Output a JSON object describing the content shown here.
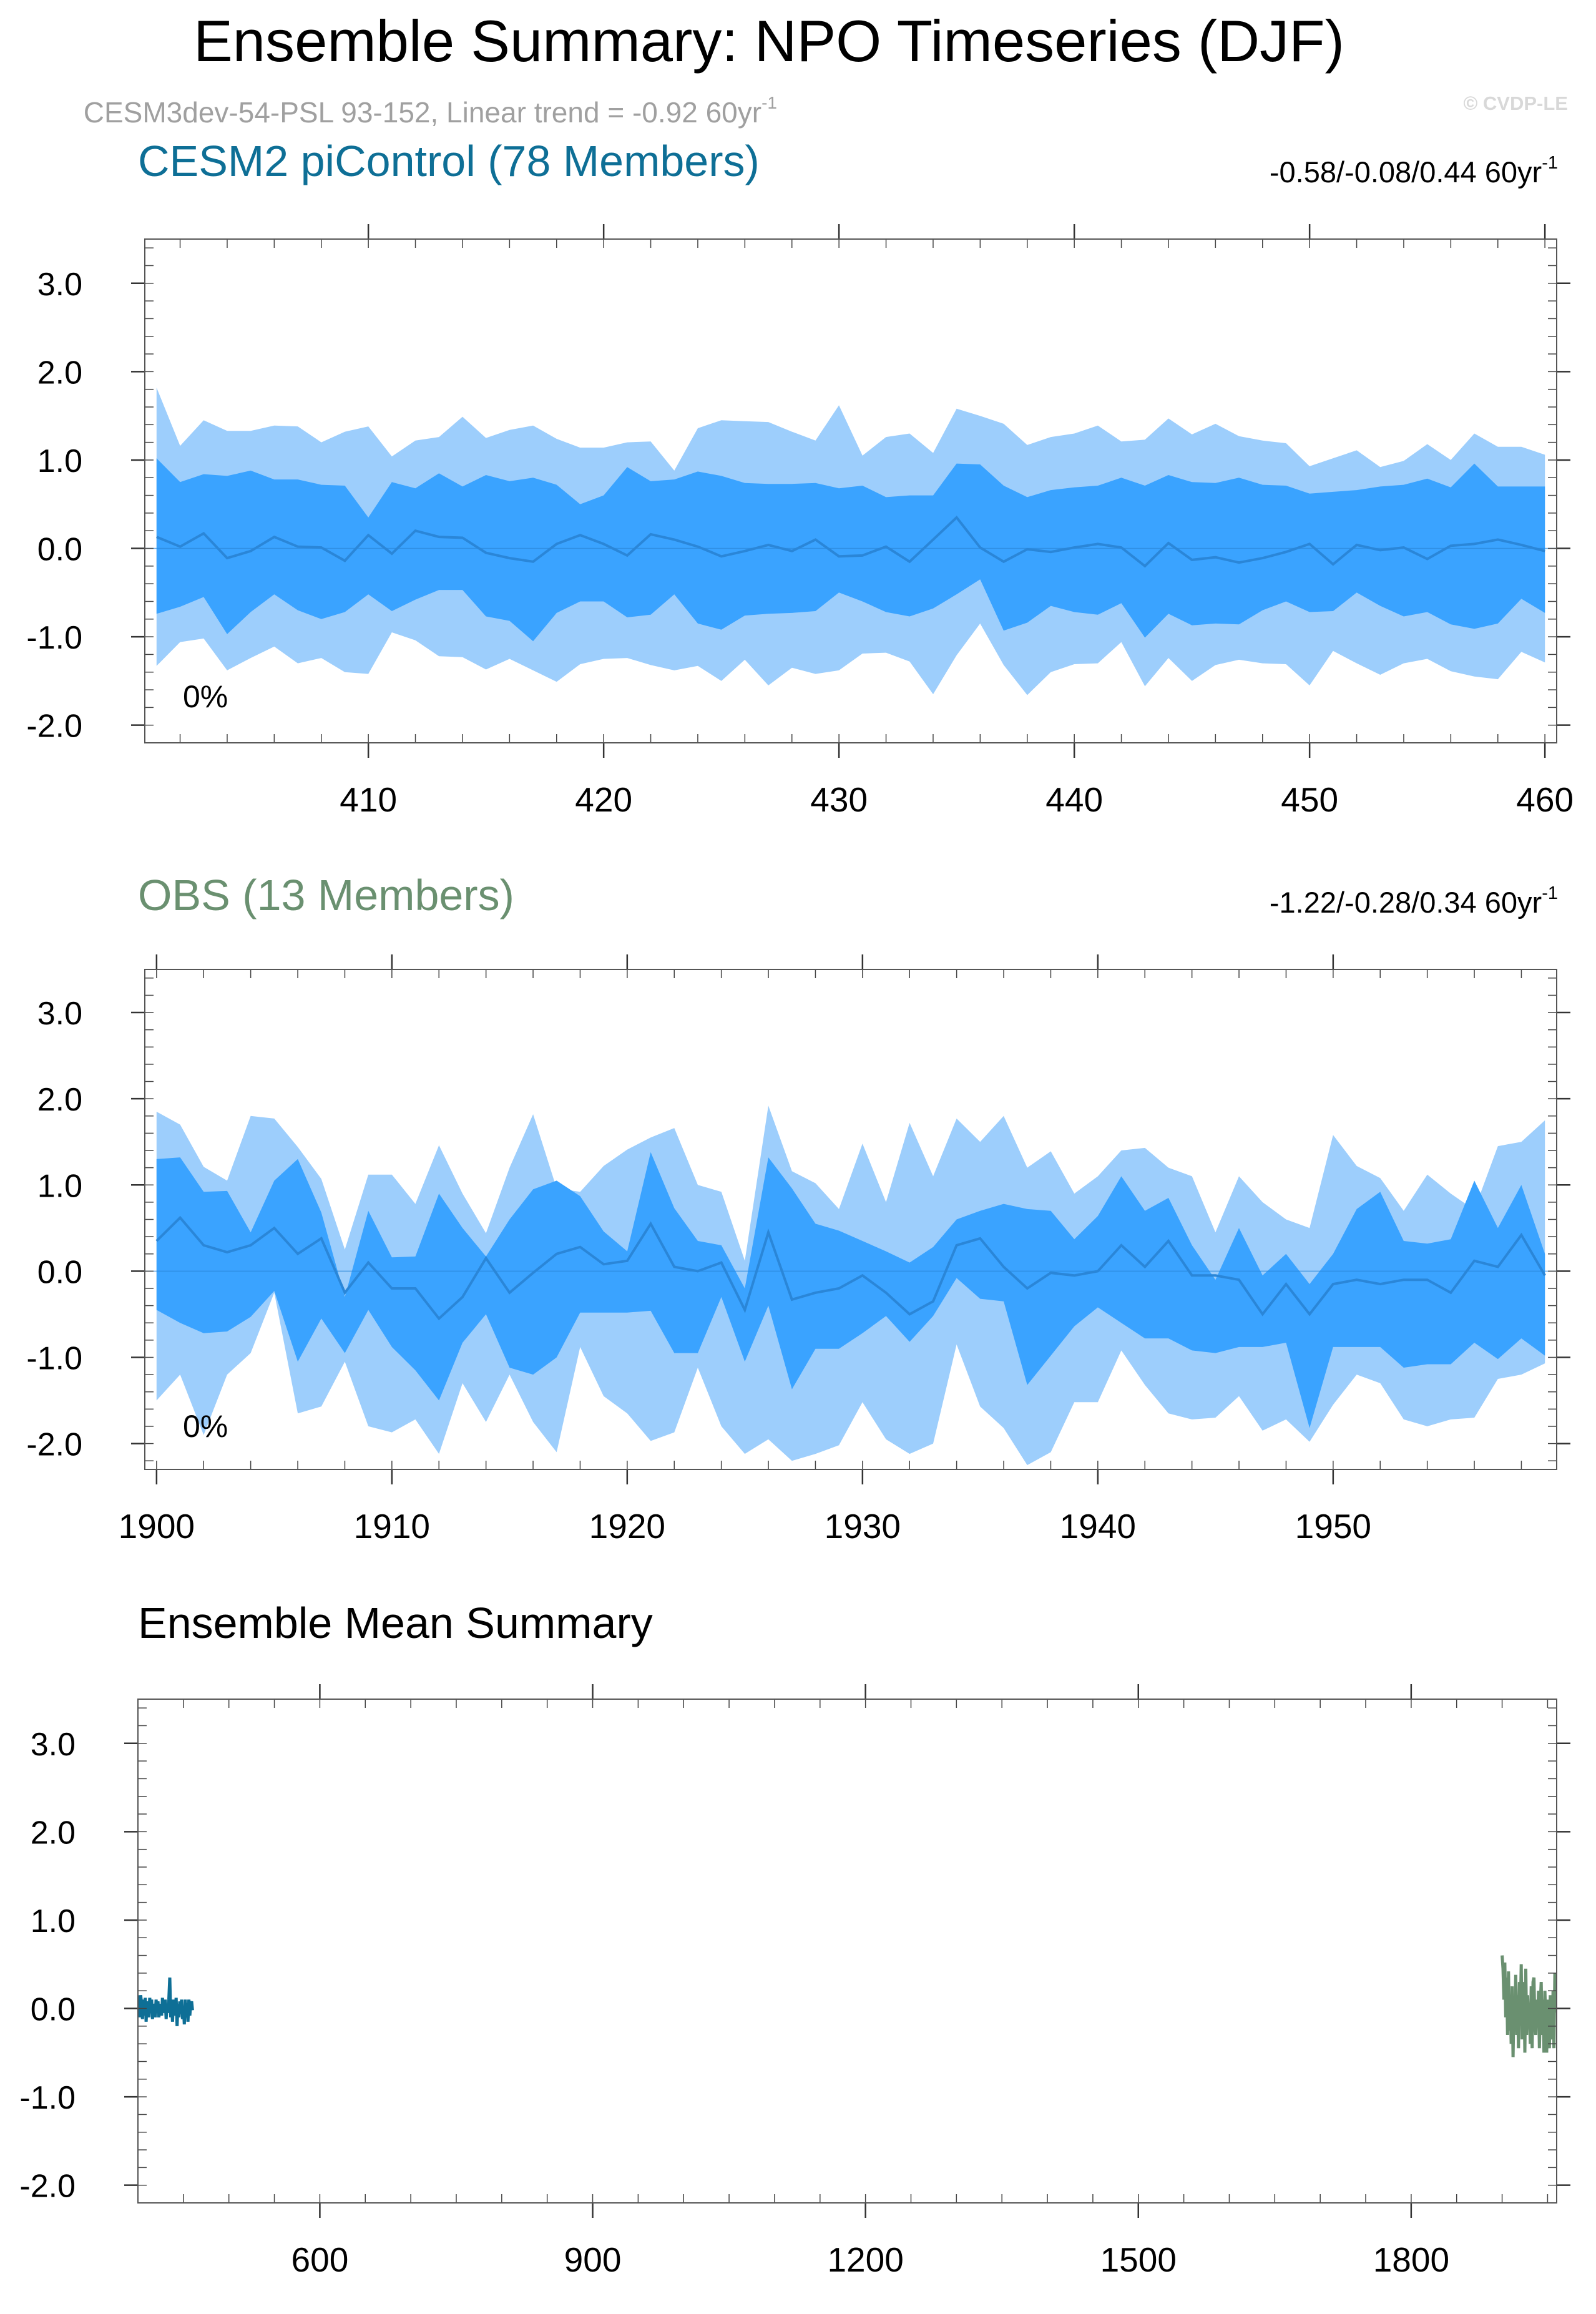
{
  "header": {
    "title": "Ensemble Summary: NPO Timeseries (DJF)",
    "subtitle_main": "CESM3dev-54-PSL 93-152, Linear trend = -0.92 60yr",
    "subtitle_sup": "-1",
    "copyright": "© CVDP-LE"
  },
  "colors": {
    "outer_band": "#9dcefc",
    "inner_band": "#3aa3ff",
    "median_line": "#2a86d8",
    "model_title": "#0e6f96",
    "obs_title": "#6a9070",
    "model_line": "#0e6f96",
    "obs_line": "#6a9070"
  },
  "chart_data": [
    {
      "type": "area",
      "title": "CESM2 piControl (78 Members)",
      "trend_label": "-0.58/-0.08/0.44 60yr",
      "trend_sup": "-1",
      "percent_label": "0%",
      "xlim": [
        400.5,
        460.5
      ],
      "ylim": [
        -2.2,
        3.5
      ],
      "xticks": [
        410,
        420,
        430,
        440,
        450,
        460
      ],
      "yticks": [
        3.0,
        2.0,
        1.0,
        0.0,
        -1.0,
        -2.0
      ],
      "ytick_labels": [
        "3.0",
        "2.0",
        "1.0",
        "0.0",
        "-1.0",
        "-2.0"
      ],
      "x": [
        401,
        402,
        403,
        404,
        405,
        406,
        407,
        408,
        409,
        410,
        411,
        412,
        413,
        414,
        415,
        416,
        417,
        418,
        419,
        420,
        421,
        422,
        423,
        424,
        425,
        426,
        427,
        428,
        429,
        430,
        431,
        432,
        433,
        434,
        435,
        436,
        437,
        438,
        439,
        440,
        441,
        442,
        443,
        444,
        445,
        446,
        447,
        448,
        449,
        450,
        451,
        452,
        453,
        454,
        455,
        456,
        457,
        458,
        459,
        460
      ],
      "p95": [
        1.82,
        1.16,
        1.45,
        1.33,
        1.33,
        1.39,
        1.38,
        1.2,
        1.32,
        1.38,
        1.04,
        1.22,
        1.26,
        1.49,
        1.25,
        1.34,
        1.39,
        1.24,
        1.14,
        1.14,
        1.2,
        1.21,
        0.88,
        1.36,
        1.45,
        1.44,
        1.43,
        1.32,
        1.22,
        1.62,
        1.05,
        1.26,
        1.3,
        1.08,
        1.58,
        1.5,
        1.41,
        1.17,
        1.26,
        1.3,
        1.39,
        1.21,
        1.23,
        1.47,
        1.29,
        1.41,
        1.27,
        1.22,
        1.19,
        0.93,
        1.02,
        1.11,
        0.92,
        0.99,
        1.18,
        1.0,
        1.3,
        1.15,
        1.15,
        1.06
      ],
      "p75": [
        1.02,
        0.75,
        0.84,
        0.82,
        0.88,
        0.78,
        0.78,
        0.72,
        0.71,
        0.35,
        0.75,
        0.68,
        0.85,
        0.7,
        0.83,
        0.76,
        0.8,
        0.72,
        0.5,
        0.6,
        0.92,
        0.76,
        0.78,
        0.87,
        0.82,
        0.74,
        0.73,
        0.73,
        0.74,
        0.68,
        0.71,
        0.58,
        0.6,
        0.6,
        0.96,
        0.95,
        0.71,
        0.58,
        0.66,
        0.69,
        0.71,
        0.8,
        0.71,
        0.83,
        0.75,
        0.74,
        0.8,
        0.72,
        0.71,
        0.62,
        0.64,
        0.66,
        0.7,
        0.72,
        0.79,
        0.69,
        0.96,
        0.7,
        0.7,
        0.7
      ],
      "p50": [
        0.13,
        0.02,
        0.17,
        -0.11,
        -0.03,
        0.13,
        0.02,
        0.01,
        -0.14,
        0.15,
        -0.06,
        0.2,
        0.13,
        0.12,
        -0.05,
        -0.11,
        -0.15,
        0.05,
        0.15,
        0.05,
        -0.08,
        0.16,
        0.1,
        0.02,
        -0.09,
        -0.03,
        0.04,
        -0.03,
        0.1,
        -0.09,
        -0.08,
        0.02,
        -0.15,
        0.1,
        0.35,
        0.01,
        -0.15,
        -0.01,
        -0.04,
        0.01,
        0.05,
        0.01,
        -0.2,
        0.06,
        -0.13,
        -0.1,
        -0.16,
        -0.11,
        -0.04,
        0.05,
        -0.18,
        0.04,
        -0.02,
        0.01,
        -0.12,
        0.03,
        0.05,
        0.1,
        0.04,
        -0.03
      ],
      "p25": [
        -0.74,
        -0.66,
        -0.55,
        -0.97,
        -0.72,
        -0.52,
        -0.7,
        -0.8,
        -0.72,
        -0.52,
        -0.71,
        -0.58,
        -0.47,
        -0.47,
        -0.77,
        -0.82,
        -1.05,
        -0.73,
        -0.6,
        -0.6,
        -0.78,
        -0.75,
        -0.52,
        -0.85,
        -0.92,
        -0.76,
        -0.74,
        -0.73,
        -0.71,
        -0.5,
        -0.6,
        -0.72,
        -0.77,
        -0.68,
        -0.52,
        -0.35,
        -0.93,
        -0.84,
        -0.65,
        -0.72,
        -0.75,
        -0.62,
        -1.01,
        -0.74,
        -0.87,
        -0.85,
        -0.86,
        -0.7,
        -0.6,
        -0.72,
        -0.71,
        -0.5,
        -0.65,
        -0.77,
        -0.72,
        -0.86,
        -0.91,
        -0.85,
        -0.57,
        -0.73
      ],
      "p05": [
        -1.33,
        -1.06,
        -1.02,
        -1.38,
        -1.24,
        -1.11,
        -1.3,
        -1.24,
        -1.4,
        -1.42,
        -0.95,
        -1.04,
        -1.22,
        -1.23,
        -1.37,
        -1.25,
        -1.38,
        -1.51,
        -1.31,
        -1.25,
        -1.24,
        -1.32,
        -1.38,
        -1.33,
        -1.5,
        -1.26,
        -1.55,
        -1.35,
        -1.42,
        -1.38,
        -1.19,
        -1.18,
        -1.28,
        -1.65,
        -1.21,
        -0.85,
        -1.32,
        -1.66,
        -1.4,
        -1.31,
        -1.3,
        -1.06,
        -1.56,
        -1.24,
        -1.5,
        -1.32,
        -1.26,
        -1.3,
        -1.31,
        -1.55,
        -1.16,
        -1.3,
        -1.43,
        -1.3,
        -1.25,
        -1.39,
        -1.45,
        -1.48,
        -1.17,
        -1.29
      ]
    },
    {
      "type": "area",
      "title": "OBS (13 Members)",
      "trend_label": "-1.22/-0.28/0.34 60yr",
      "trend_sup": "-1",
      "percent_label": "0%",
      "xlim": [
        1899.5,
        1959.5
      ],
      "ylim": [
        -2.3,
        3.5
      ],
      "xticks": [
        1900,
        1910,
        1920,
        1930,
        1940,
        1950
      ],
      "yticks": [
        3.0,
        2.0,
        1.0,
        0.0,
        -1.0,
        -2.0
      ],
      "ytick_labels": [
        "3.0",
        "2.0",
        "1.0",
        "0.0",
        "-1.0",
        "-2.0"
      ],
      "x": [
        1900,
        1901,
        1902,
        1903,
        1904,
        1905,
        1906,
        1907,
        1908,
        1909,
        1910,
        1911,
        1912,
        1913,
        1914,
        1915,
        1916,
        1917,
        1918,
        1919,
        1920,
        1921,
        1922,
        1923,
        1924,
        1925,
        1926,
        1927,
        1928,
        1929,
        1930,
        1931,
        1932,
        1933,
        1934,
        1935,
        1936,
        1937,
        1938,
        1939,
        1940,
        1941,
        1942,
        1943,
        1944,
        1945,
        1946,
        1947,
        1948,
        1949,
        1950,
        1951,
        1952,
        1953,
        1954,
        1955,
        1956,
        1957,
        1958,
        1959
      ],
      "p95": [
        1.85,
        1.7,
        1.21,
        1.05,
        1.8,
        1.77,
        1.44,
        1.07,
        0.25,
        1.12,
        1.12,
        0.78,
        1.46,
        0.9,
        0.44,
        1.2,
        1.82,
        0.96,
        0.92,
        1.22,
        1.41,
        1.55,
        1.66,
        1.0,
        0.92,
        0.12,
        1.92,
        1.16,
        1.02,
        0.72,
        1.48,
        0.8,
        1.72,
        1.1,
        1.77,
        1.5,
        1.8,
        1.2,
        1.39,
        0.9,
        1.1,
        1.4,
        1.43,
        1.2,
        1.1,
        0.45,
        1.1,
        0.8,
        0.6,
        0.5,
        1.58,
        1.22,
        1.08,
        0.7,
        1.12,
        0.9,
        0.71,
        1.45,
        1.5,
        1.75
      ],
      "p75": [
        1.3,
        1.32,
        0.92,
        0.93,
        0.45,
        1.05,
        1.3,
        0.68,
        -0.3,
        0.7,
        0.16,
        0.17,
        0.9,
        0.5,
        0.17,
        0.6,
        0.95,
        1.05,
        0.87,
        0.46,
        0.23,
        1.38,
        0.73,
        0.35,
        0.3,
        -0.2,
        1.32,
        0.96,
        0.55,
        0.47,
        0.35,
        0.23,
        0.1,
        0.28,
        0.6,
        0.7,
        0.78,
        0.72,
        0.7,
        0.37,
        0.64,
        1.1,
        0.7,
        0.85,
        0.3,
        -0.1,
        0.5,
        -0.05,
        0.2,
        -0.15,
        0.2,
        0.72,
        0.92,
        0.35,
        0.32,
        0.37,
        1.05,
        0.5,
        1.0,
        0.2
      ],
      "p50": [
        0.35,
        0.62,
        0.3,
        0.22,
        0.3,
        0.5,
        0.2,
        0.38,
        -0.25,
        0.1,
        -0.2,
        -0.2,
        -0.55,
        -0.3,
        0.15,
        -0.25,
        -0.02,
        0.2,
        0.28,
        0.08,
        0.12,
        0.55,
        0.05,
        0.0,
        0.1,
        -0.45,
        0.45,
        -0.33,
        -0.25,
        -0.2,
        -0.05,
        -0.25,
        -0.5,
        -0.35,
        0.3,
        0.38,
        0.05,
        -0.2,
        -0.02,
        -0.05,
        0.0,
        0.3,
        0.05,
        0.35,
        -0.05,
        -0.05,
        -0.1,
        -0.5,
        -0.15,
        -0.5,
        -0.15,
        -0.1,
        -0.15,
        -0.1,
        -0.1,
        -0.25,
        0.12,
        0.05,
        0.42,
        -0.05
      ],
      "p25": [
        -0.45,
        -0.6,
        -0.72,
        -0.7,
        -0.53,
        -0.23,
        -1.05,
        -0.55,
        -0.95,
        -0.45,
        -0.88,
        -1.15,
        -1.5,
        -0.83,
        -0.5,
        -1.12,
        -1.2,
        -1.0,
        -0.48,
        -0.48,
        -0.48,
        -0.46,
        -0.95,
        -0.95,
        -0.3,
        -1.05,
        -0.4,
        -1.37,
        -0.9,
        -0.9,
        -0.72,
        -0.52,
        -0.82,
        -0.52,
        -0.08,
        -0.32,
        -0.35,
        -1.32,
        -0.98,
        -0.64,
        -0.42,
        -0.6,
        -0.78,
        -0.78,
        -0.92,
        -0.95,
        -0.88,
        -0.88,
        -0.83,
        -1.82,
        -0.88,
        -0.88,
        -0.88,
        -1.12,
        -1.08,
        -1.08,
        -0.83,
        -1.02,
        -0.78,
        -0.98
      ],
      "p05": [
        -1.5,
        -1.2,
        -1.9,
        -1.2,
        -0.95,
        -0.25,
        -1.65,
        -1.57,
        -1.05,
        -1.8,
        -1.87,
        -1.72,
        -2.12,
        -1.3,
        -1.75,
        -1.2,
        -1.75,
        -2.1,
        -0.88,
        -1.45,
        -1.65,
        -1.97,
        -1.87,
        -1.12,
        -1.8,
        -2.12,
        -1.95,
        -2.2,
        -2.12,
        -2.02,
        -1.52,
        -1.95,
        -2.12,
        -2.0,
        -0.85,
        -1.57,
        -1.82,
        -2.25,
        -2.1,
        -1.52,
        -1.52,
        -0.92,
        -1.32,
        -1.65,
        -1.72,
        -1.7,
        -1.45,
        -1.85,
        -1.72,
        -1.98,
        -1.55,
        -1.2,
        -1.3,
        -1.72,
        -1.8,
        -1.72,
        -1.7,
        -1.25,
        -1.2,
        -1.07
      ]
    },
    {
      "type": "line",
      "title": "Ensemble Mean Summary",
      "xlim": [
        400,
        1960
      ],
      "ylim": [
        -2.2,
        3.5
      ],
      "xticks": [
        600,
        900,
        1200,
        1500,
        1800
      ],
      "yticks": [
        3.0,
        2.0,
        1.0,
        0.0,
        -1.0,
        -2.0
      ],
      "ytick_labels": [
        "3.0",
        "2.0",
        "1.0",
        "0.0",
        "-1.0",
        "-2.0"
      ],
      "series": [
        {
          "name": "CESM2 piControl",
          "x": [
            401,
            402,
            403,
            404,
            405,
            406,
            407,
            408,
            409,
            410,
            411,
            412,
            413,
            414,
            415,
            416,
            417,
            418,
            419,
            420,
            421,
            422,
            423,
            424,
            425,
            426,
            427,
            428,
            429,
            430,
            431,
            432,
            433,
            434,
            435,
            436,
            437,
            438,
            439,
            440,
            441,
            442,
            443,
            444,
            445,
            446,
            447,
            448,
            449,
            450,
            451,
            452,
            453,
            454,
            455,
            456,
            457,
            458,
            459,
            460
          ],
          "values": [
            0.15,
            -0.1,
            0.15,
            0.05,
            -0.12,
            0.1,
            -0.08,
            0.12,
            -0.15,
            0.08,
            0.0,
            -0.1,
            0.12,
            -0.05,
            0.1,
            -0.12,
            0.05,
            0.02,
            -0.1,
            0.1,
            -0.05,
            0.08,
            -0.1,
            0.05,
            0.0,
            -0.08,
            0.12,
            -0.05,
            0.02,
            0.1,
            -0.12,
            0.05,
            -0.05,
            0.1,
            0.35,
            -0.1,
            0.05,
            -0.15,
            0.1,
            0.0,
            -0.08,
            0.12,
            -0.2,
            0.05,
            -0.1,
            0.08,
            -0.05,
            0.1,
            -0.12,
            0.02,
            -0.18,
            0.1,
            -0.05,
            0.06,
            -0.15,
            0.1,
            -0.08,
            0.05,
            0.08,
            -0.02
          ]
        },
        {
          "name": "OBS",
          "x": [
            1900,
            1901,
            1902,
            1903,
            1904,
            1905,
            1906,
            1907,
            1908,
            1909,
            1910,
            1911,
            1912,
            1913,
            1914,
            1915,
            1916,
            1917,
            1918,
            1919,
            1920,
            1921,
            1922,
            1923,
            1924,
            1925,
            1926,
            1927,
            1928,
            1929,
            1930,
            1931,
            1932,
            1933,
            1934,
            1935,
            1936,
            1937,
            1938,
            1939,
            1940,
            1941,
            1942,
            1943,
            1944,
            1945,
            1946,
            1947,
            1948,
            1949,
            1950,
            1951,
            1952,
            1953,
            1954,
            1955,
            1956,
            1957,
            1958,
            1959
          ],
          "values": [
            0.6,
            0.45,
            0.1,
            0.52,
            -0.1,
            0.35,
            -0.3,
            0.42,
            -0.25,
            0.1,
            -0.4,
            0.25,
            -0.55,
            0.05,
            -0.2,
            0.38,
            -0.3,
            0.15,
            -0.45,
            0.3,
            -0.1,
            0.5,
            -0.35,
            0.05,
            0.3,
            -0.5,
            0.45,
            -0.3,
            0.15,
            -0.2,
            0.05,
            -0.4,
            0.25,
            -0.45,
            0.3,
            0.35,
            -0.15,
            -0.3,
            0.1,
            -0.2,
            0.2,
            -0.45,
            0.05,
            0.3,
            -0.3,
            0.1,
            -0.5,
            0.2,
            -0.15,
            -0.5,
            0.1,
            -0.3,
            -0.45,
            0.15,
            -0.2,
            -0.35,
            0.2,
            -0.45,
            0.4,
            -0.05
          ]
        }
      ]
    }
  ]
}
